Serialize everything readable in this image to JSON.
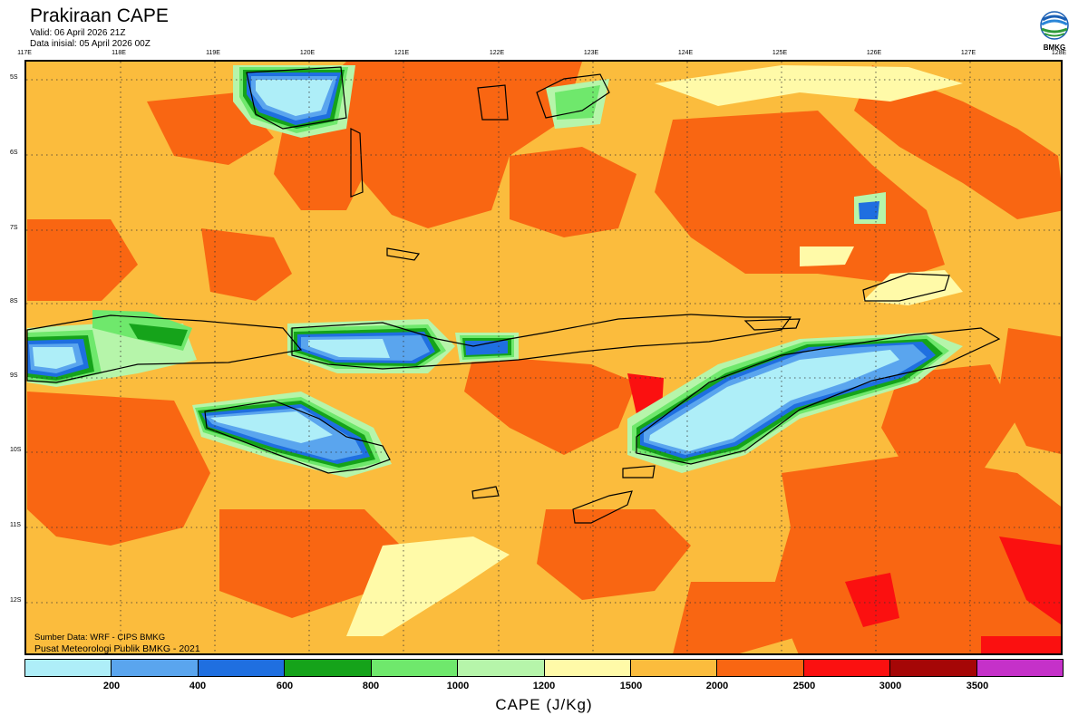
{
  "title": "Prakiraan CAPE",
  "valid": "Valid: 06 April 2026 21Z",
  "initial": "Data inisial: 05 April 2026 00Z",
  "logo": {
    "text": "BMKG",
    "icon": "bmkg-logo-icon"
  },
  "lon_labels": [
    "117E",
    "118E",
    "119E",
    "120E",
    "121E",
    "122E",
    "123E",
    "124E",
    "125E",
    "126E",
    "127E",
    "128E"
  ],
  "lat_labels": [
    "5S",
    "6S",
    "7S",
    "8S",
    "9S",
    "10S",
    "11S",
    "12S"
  ],
  "source": "Sumber Data: WRF - CIPS BMKG",
  "credit": "Pusat Meteorologi Publik BMKG - 2021",
  "colorbar": {
    "title": "CAPE (J/Kg)",
    "colors": [
      "#aeeef8",
      "#5aa5ee",
      "#1f6fe0",
      "#15a31a",
      "#6fe86c",
      "#b6f5aa",
      "#fffaa8",
      "#fbbc3d",
      "#f96612",
      "#fb1010",
      "#a50606",
      "#c531c9"
    ],
    "ticks": [
      "200",
      "400",
      "600",
      "800",
      "1000",
      "1200",
      "1500",
      "2000",
      "2500",
      "3000",
      "3500"
    ]
  }
}
